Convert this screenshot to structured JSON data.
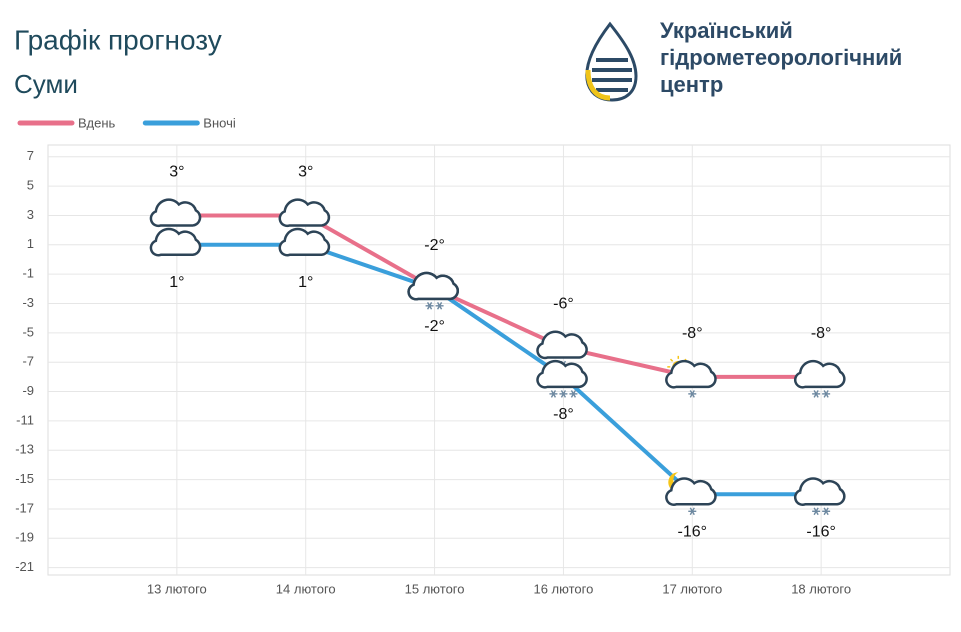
{
  "header": {
    "title": "Графік прогнозу",
    "subtitle": "Суми",
    "logo_lines": [
      "Український",
      "гідрометеорологічний",
      "центр"
    ]
  },
  "chart_data": {
    "type": "line",
    "categories": [
      "13 лютого",
      "14 лютого",
      "15 лютого",
      "16 лютого",
      "17 лютого",
      "18 лютого"
    ],
    "series": [
      {
        "name": "Вдень",
        "color": "#e8708a",
        "values": [
          3,
          3,
          -2,
          -6,
          -8,
          -8
        ],
        "value_labels": [
          "3°",
          "3°",
          "-2°",
          "-6°",
          "-8°",
          "-8°"
        ]
      },
      {
        "name": "Вночі",
        "color": "#3a9fdb",
        "values": [
          1,
          1,
          -2,
          -8,
          -16,
          -16
        ],
        "value_labels": [
          "1°",
          "1°",
          "-2°",
          "-8°",
          "-16°",
          "-16°"
        ]
      }
    ],
    "ylim": [
      -21.5,
      7.8
    ],
    "yticks": [
      7,
      5,
      3,
      1,
      -1,
      -3,
      -5,
      -7,
      -9,
      -11,
      -13,
      -15,
      -17,
      -19,
      -21
    ],
    "grid": true,
    "legend": "top-left"
  }
}
